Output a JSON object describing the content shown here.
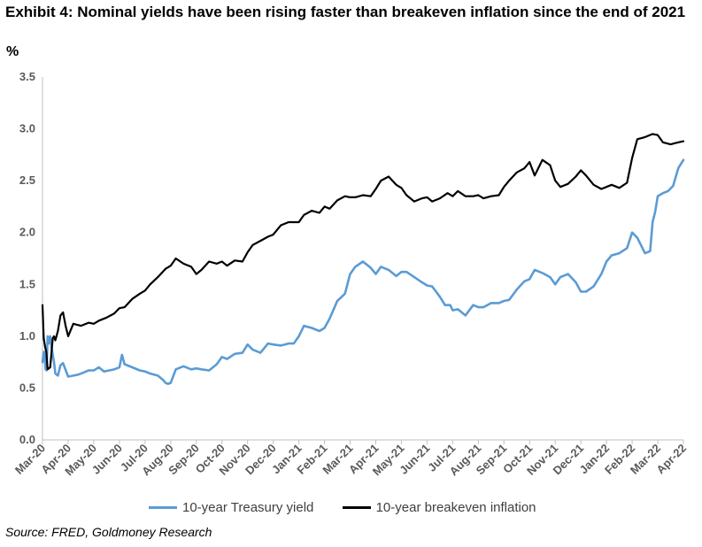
{
  "title": "Exhibit 4: Nominal yields have been rising faster than breakeven inflation since the end of 2021",
  "unit_label": "%",
  "source": "Source: FRED, Goldmoney Research",
  "colors": {
    "treasury": "#5b9bd5",
    "breakeven": "#000000",
    "axis": "#bfbfbf"
  },
  "chart_data": {
    "type": "line",
    "title": "Exhibit 4: Nominal yields have been rising faster than breakeven inflation since the end of 2021",
    "xlabel": "",
    "ylabel": "%",
    "ylim": [
      0,
      3.5
    ],
    "yticks": [
      "0.0",
      "0.5",
      "1.0",
      "1.5",
      "2.0",
      "2.5",
      "3.0",
      "3.5"
    ],
    "xticks": [
      "Mar-20",
      "Apr-20",
      "May-20",
      "Jun-20",
      "Jul-20",
      "Aug-20",
      "Sep-20",
      "Oct-20",
      "Nov-20",
      "Dec-20",
      "Jan-21",
      "Feb-21",
      "Mar-21",
      "Apr-21",
      "May-21",
      "Jun-21",
      "Jul-21",
      "Aug-21",
      "Sep-21",
      "Oct-21",
      "Nov-21",
      "Dec-21",
      "Jan-22",
      "Feb-22",
      "Mar-22",
      "Apr-22"
    ],
    "grid": false,
    "legend_position": "bottom",
    "series": [
      {
        "name": "10-year Treasury yield",
        "color": "#5b9bd5",
        "x": [
          0,
          0.03,
          0.06,
          0.09,
          0.12,
          0.16,
          0.2,
          0.25,
          0.3,
          0.35,
          0.45,
          0.5,
          0.6,
          0.7,
          0.8,
          1.0,
          1.2,
          1.4,
          1.6,
          1.8,
          2.0,
          2.2,
          2.4,
          2.6,
          2.8,
          3.0,
          3.1,
          3.2,
          3.5,
          3.8,
          4.0,
          4.2,
          4.5,
          4.7,
          4.8,
          4.9,
          5.0,
          5.2,
          5.5,
          5.8,
          6.0,
          6.2,
          6.5,
          6.8,
          7.0,
          7.2,
          7.5,
          7.8,
          8.0,
          8.2,
          8.5,
          8.8,
          9.0,
          9.3,
          9.6,
          9.8,
          10.0,
          10.2,
          10.5,
          10.8,
          11.0,
          11.2,
          11.5,
          11.8,
          12.0,
          12.2,
          12.5,
          12.8,
          13.0,
          13.2,
          13.5,
          13.8,
          14.0,
          14.2,
          14.5,
          14.8,
          15.0,
          15.2,
          15.5,
          15.7,
          15.9,
          16.0,
          16.2,
          16.5,
          16.8,
          17.0,
          17.2,
          17.5,
          17.8,
          18.0,
          18.2,
          18.5,
          18.8,
          19.0,
          19.2,
          19.5,
          19.8,
          20.0,
          20.2,
          20.5,
          20.8,
          21.0,
          21.2,
          21.5,
          21.8,
          22.0,
          22.2,
          22.5,
          22.8,
          23.0,
          23.2,
          23.5,
          23.7,
          23.8,
          23.9,
          24.0,
          24.2,
          24.4,
          24.6,
          24.8,
          25.0
        ],
        "values": [
          0.75,
          0.82,
          0.85,
          0.78,
          0.68,
          0.67,
          1.0,
          0.93,
          1.0,
          0.9,
          0.75,
          0.64,
          0.62,
          0.72,
          0.74,
          0.61,
          0.62,
          0.63,
          0.65,
          0.67,
          0.67,
          0.7,
          0.66,
          0.67,
          0.68,
          0.7,
          0.82,
          0.73,
          0.7,
          0.67,
          0.66,
          0.64,
          0.62,
          0.58,
          0.55,
          0.54,
          0.55,
          0.68,
          0.71,
          0.68,
          0.69,
          0.68,
          0.67,
          0.73,
          0.8,
          0.78,
          0.83,
          0.84,
          0.92,
          0.87,
          0.84,
          0.93,
          0.92,
          0.91,
          0.93,
          0.93,
          1.0,
          1.1,
          1.08,
          1.05,
          1.08,
          1.17,
          1.34,
          1.41,
          1.6,
          1.67,
          1.72,
          1.66,
          1.6,
          1.67,
          1.64,
          1.58,
          1.62,
          1.62,
          1.57,
          1.52,
          1.49,
          1.48,
          1.38,
          1.3,
          1.3,
          1.25,
          1.26,
          1.2,
          1.3,
          1.28,
          1.28,
          1.32,
          1.32,
          1.34,
          1.35,
          1.45,
          1.53,
          1.55,
          1.64,
          1.61,
          1.57,
          1.5,
          1.57,
          1.6,
          1.52,
          1.43,
          1.43,
          1.48,
          1.6,
          1.72,
          1.78,
          1.8,
          1.85,
          2.0,
          1.95,
          1.8,
          1.82,
          2.1,
          2.2,
          2.35,
          2.38,
          2.4,
          2.45,
          2.62,
          2.7
        ]
      },
      {
        "name": "10-year breakeven inflation",
        "color": "#000000",
        "x": [
          0,
          0.05,
          0.1,
          0.15,
          0.2,
          0.3,
          0.4,
          0.45,
          0.5,
          0.6,
          0.7,
          0.8,
          0.9,
          1.0,
          1.2,
          1.5,
          1.8,
          2.0,
          2.2,
          2.5,
          2.8,
          3.0,
          3.2,
          3.5,
          3.8,
          4.0,
          4.2,
          4.5,
          4.8,
          5.0,
          5.2,
          5.5,
          5.8,
          6.0,
          6.2,
          6.5,
          6.8,
          7.0,
          7.2,
          7.5,
          7.8,
          8.0,
          8.2,
          8.5,
          8.8,
          9.0,
          9.3,
          9.6,
          10.0,
          10.2,
          10.5,
          10.8,
          11.0,
          11.2,
          11.5,
          11.8,
          12.0,
          12.2,
          12.5,
          12.8,
          13.0,
          13.2,
          13.5,
          13.8,
          14.0,
          14.2,
          14.5,
          14.8,
          15.0,
          15.2,
          15.5,
          15.8,
          16.0,
          16.2,
          16.5,
          16.8,
          17.0,
          17.2,
          17.5,
          17.8,
          18.0,
          18.2,
          18.5,
          18.8,
          19.0,
          19.2,
          19.5,
          19.8,
          20.0,
          20.2,
          20.5,
          20.8,
          21.0,
          21.2,
          21.5,
          21.8,
          22.0,
          22.2,
          22.5,
          22.8,
          23.0,
          23.2,
          23.5,
          23.8,
          24.0,
          24.2,
          24.5,
          24.8,
          25.0
        ],
        "values": [
          1.3,
          0.98,
          0.9,
          0.85,
          0.68,
          0.7,
          0.98,
          1.0,
          0.96,
          1.05,
          1.2,
          1.23,
          1.1,
          1.0,
          1.12,
          1.1,
          1.13,
          1.12,
          1.15,
          1.18,
          1.22,
          1.27,
          1.28,
          1.36,
          1.41,
          1.44,
          1.5,
          1.57,
          1.65,
          1.68,
          1.75,
          1.7,
          1.67,
          1.6,
          1.64,
          1.72,
          1.7,
          1.72,
          1.68,
          1.73,
          1.72,
          1.81,
          1.88,
          1.92,
          1.96,
          1.98,
          2.07,
          2.1,
          2.1,
          2.17,
          2.21,
          2.19,
          2.25,
          2.23,
          2.31,
          2.35,
          2.34,
          2.34,
          2.36,
          2.35,
          2.42,
          2.5,
          2.54,
          2.46,
          2.43,
          2.36,
          2.3,
          2.33,
          2.34,
          2.3,
          2.33,
          2.38,
          2.35,
          2.4,
          2.35,
          2.35,
          2.36,
          2.33,
          2.35,
          2.36,
          2.44,
          2.5,
          2.58,
          2.62,
          2.68,
          2.55,
          2.7,
          2.65,
          2.5,
          2.44,
          2.47,
          2.54,
          2.6,
          2.55,
          2.46,
          2.42,
          2.44,
          2.46,
          2.43,
          2.48,
          2.72,
          2.9,
          2.92,
          2.95,
          2.94,
          2.87,
          2.85,
          2.87,
          2.88
        ]
      }
    ]
  }
}
